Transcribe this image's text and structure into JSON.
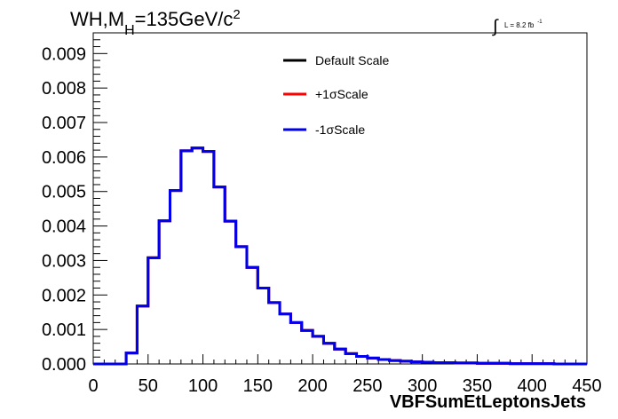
{
  "chart_data": {
    "type": "line",
    "title": "WH,M",
    "title_sub": "H",
    "title_rest": "=135GeV/c",
    "title_sup": "2",
    "lumi_integral": "∫",
    "lumi_label": "L = 8.2 fb",
    "lumi_sup": "-1",
    "xlabel": "VBFSumEtLeptonsJets",
    "ylabel": "",
    "xlim": [
      0,
      450
    ],
    "ylim": [
      0,
      0.0096
    ],
    "x_ticks": [
      "0",
      "50",
      "100",
      "150",
      "200",
      "250",
      "300",
      "350",
      "400",
      "450"
    ],
    "y_ticks": [
      "0.000",
      "0.001",
      "0.002",
      "0.003",
      "0.004",
      "0.005",
      "0.006",
      "0.007",
      "0.008",
      "0.009"
    ],
    "grid": false,
    "legend_position": "top-right",
    "bin_edges": [
      0,
      10,
      20,
      30,
      40,
      50,
      60,
      70,
      80,
      90,
      100,
      110,
      120,
      130,
      140,
      150,
      160,
      170,
      180,
      190,
      200,
      210,
      220,
      230,
      240,
      250,
      260,
      270,
      280,
      290,
      300,
      310,
      320,
      330,
      340,
      350,
      360,
      370,
      380,
      390,
      400,
      410,
      420,
      430,
      440,
      450
    ],
    "series": [
      {
        "name": "Default Scale",
        "color": "#000000",
        "values": [
          0,
          0,
          0,
          0.00032,
          0.00168,
          0.00308,
          0.00415,
          0.00503,
          0.00618,
          0.00626,
          0.00616,
          0.00513,
          0.00414,
          0.0034,
          0.0028,
          0.0022,
          0.00178,
          0.00145,
          0.0012,
          0.00097,
          0.0008,
          0.0006,
          0.00043,
          0.0003,
          0.00022,
          0.00017,
          0.00013,
          0.0001,
          8e-05,
          6e-05,
          5e-05,
          4e-05,
          4e-05,
          3e-05,
          3e-05,
          2e-05,
          2e-05,
          2e-05,
          1e-05,
          1e-05,
          1e-05,
          1e-05,
          0,
          0,
          0
        ]
      },
      {
        "name": "+1σScale",
        "color": "#ff0000",
        "values": [
          0,
          0,
          0,
          0.00032,
          0.00168,
          0.00308,
          0.00415,
          0.00503,
          0.00618,
          0.00626,
          0.00616,
          0.00513,
          0.00414,
          0.0034,
          0.0028,
          0.0022,
          0.00178,
          0.00145,
          0.0012,
          0.00097,
          0.0008,
          0.0006,
          0.00043,
          0.0003,
          0.00022,
          0.00017,
          0.00013,
          0.0001,
          8e-05,
          6e-05,
          5e-05,
          4e-05,
          4e-05,
          3e-05,
          3e-05,
          2e-05,
          2e-05,
          2e-05,
          1e-05,
          1e-05,
          1e-05,
          1e-05,
          0,
          0,
          0
        ]
      },
      {
        "name": "-1σScale",
        "color": "#0000ee",
        "values": [
          0,
          0,
          0,
          0.00032,
          0.00168,
          0.00308,
          0.00415,
          0.00503,
          0.00618,
          0.00626,
          0.00616,
          0.00513,
          0.00414,
          0.0034,
          0.0028,
          0.0022,
          0.00178,
          0.00145,
          0.0012,
          0.00097,
          0.0008,
          0.0006,
          0.00043,
          0.0003,
          0.00022,
          0.00017,
          0.00013,
          0.0001,
          8e-05,
          6e-05,
          5e-05,
          4e-05,
          4e-05,
          3e-05,
          3e-05,
          2e-05,
          2e-05,
          2e-05,
          1e-05,
          1e-05,
          1e-05,
          1e-05,
          0,
          0,
          0
        ]
      }
    ]
  }
}
